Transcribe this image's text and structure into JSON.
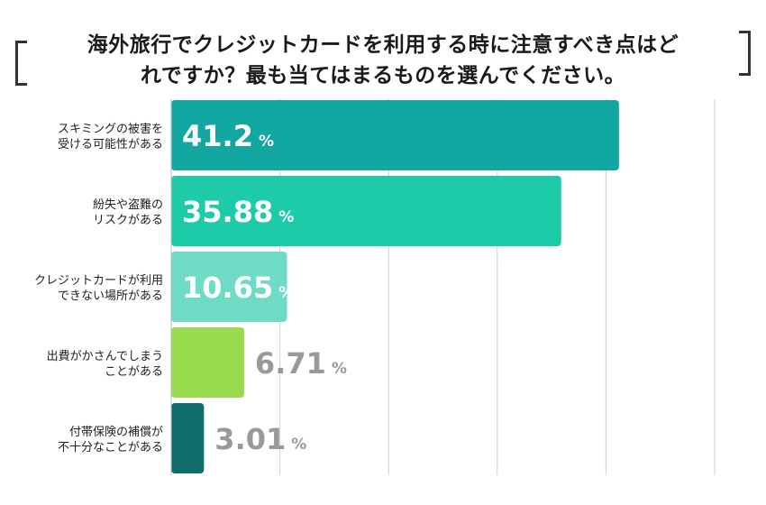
{
  "title_lines": [
    "海外旅行でクレジットカードを利用する時に注意すべき点はど",
    "れですか？最も当てはまるものを選んでください。"
  ],
  "chart_data": {
    "type": "bar",
    "orientation": "horizontal",
    "categories": [
      [
        "スキミングの被害を",
        "受ける可能性がある"
      ],
      [
        "紛失や盗難の",
        "リスクがある"
      ],
      [
        "クレジットカードが利用",
        "できない場所がある"
      ],
      [
        "出費がかさんでしまう",
        "ことがある"
      ],
      [
        "付帯保険の補償が",
        "不十分なことがある"
      ]
    ],
    "values": [
      41.2,
      35.88,
      10.65,
      6.71,
      3.01
    ],
    "value_labels": [
      "41.2",
      "35.88",
      "10.65",
      "6.71",
      "3.01"
    ],
    "unit": "%",
    "colors": [
      "#12a8a1",
      "#1ecba9",
      "#6ddbc6",
      "#98db4e",
      "#106e6a"
    ],
    "inside_label_color": "#ffffff",
    "outside_label_color": "#999999",
    "xlim": [
      0,
      50
    ],
    "grid": true
  }
}
